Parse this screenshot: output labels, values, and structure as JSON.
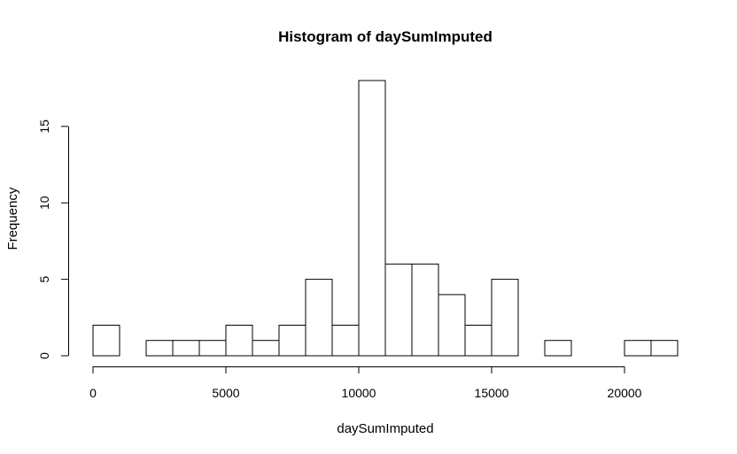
{
  "chart_data": {
    "type": "bar",
    "title": "Histogram of daySumImputed",
    "xlabel": "daySumImputed",
    "ylabel": "Frequency",
    "bin_edges": [
      0,
      1000,
      2000,
      3000,
      4000,
      5000,
      6000,
      7000,
      8000,
      9000,
      10000,
      11000,
      12000,
      13000,
      14000,
      15000,
      16000,
      17000,
      18000,
      19000,
      20000,
      21000,
      22000
    ],
    "values": [
      2,
      0,
      1,
      1,
      1,
      2,
      1,
      2,
      5,
      2,
      18,
      6,
      6,
      4,
      2,
      5,
      0,
      1,
      0,
      0,
      1,
      1
    ],
    "xlim": [
      0,
      22000
    ],
    "ylim": [
      0,
      18
    ],
    "x_ticks": [
      0,
      5000,
      10000,
      15000,
      20000
    ],
    "y_ticks": [
      0,
      5,
      10,
      15
    ],
    "grid": false
  }
}
